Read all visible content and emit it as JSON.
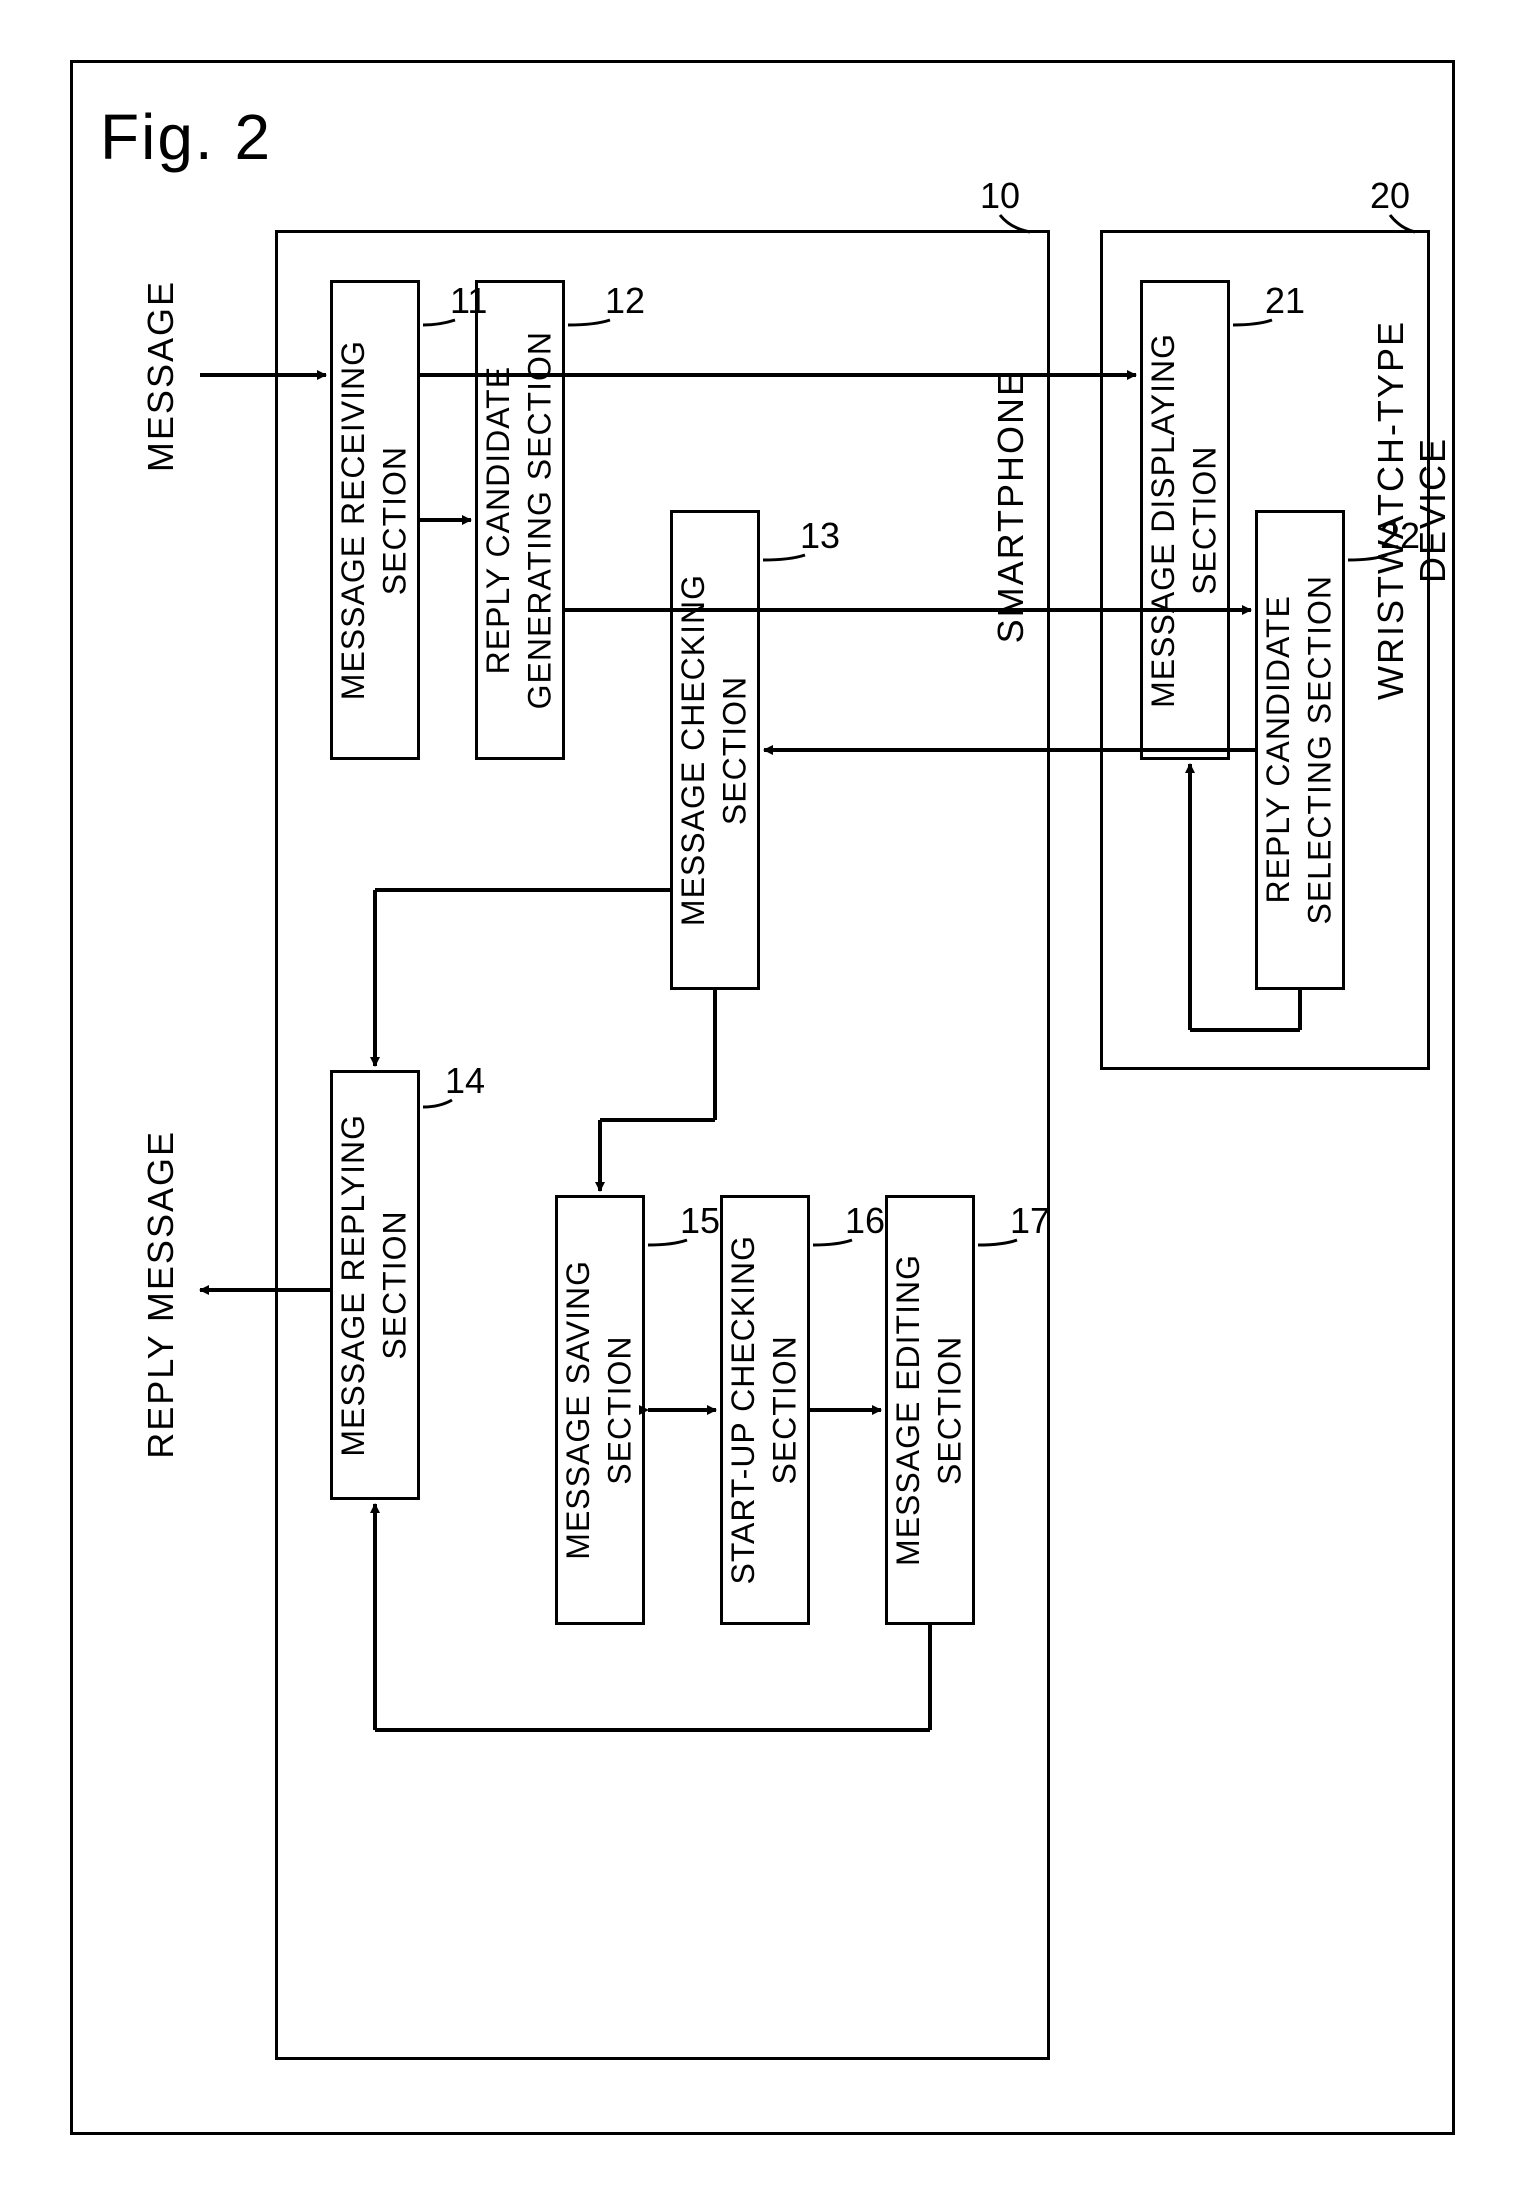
{
  "figure_label": "Fig. 2",
  "io": {
    "message_in": "MESSAGE",
    "reply_out": "REPLY MESSAGE"
  },
  "devices": {
    "smartphone": {
      "ref": "10",
      "label": "SMARTPHONE"
    },
    "watch": {
      "ref": "20",
      "label": "WRISTWATCH-TYPE DEVICE"
    }
  },
  "sections": {
    "s11": {
      "ref": "11",
      "label": "MESSAGE RECEIVING\nSECTION"
    },
    "s12": {
      "ref": "12",
      "label": "REPLY CANDIDATE\nGENERATING SECTION"
    },
    "s13": {
      "ref": "13",
      "label": "MESSAGE CHECKING\nSECTION"
    },
    "s14": {
      "ref": "14",
      "label": "MESSAGE REPLYING\nSECTION"
    },
    "s15": {
      "ref": "15",
      "label": "MESSAGE SAVING\nSECTION"
    },
    "s16": {
      "ref": "16",
      "label": "START-UP CHECKING\nSECTION"
    },
    "s17": {
      "ref": "17",
      "label": "MESSAGE EDITING\nSECTION"
    },
    "s21": {
      "ref": "21",
      "label": "MESSAGE DISPLAYING\nSECTION"
    },
    "s22": {
      "ref": "22",
      "label": "REPLY CANDIDATE\nSELECTING SECTION"
    }
  },
  "style": {
    "stroke": "#000000",
    "stroke_width": 3,
    "arrow_width": 4,
    "font_color": "#000000"
  }
}
